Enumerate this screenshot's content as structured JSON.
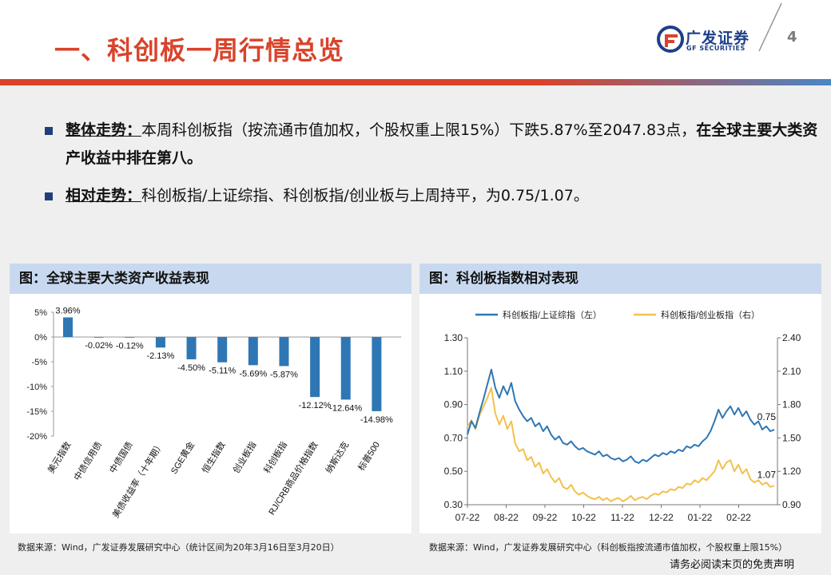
{
  "header": {
    "title": "一、科创板一周行情总览",
    "logo_cn": "广发证券",
    "logo_en": "GF SECURITIES",
    "page_number": "4"
  },
  "bullets": [
    {
      "label": "整体走势：",
      "text": "本周科创板指（按流通市值加权，个股权重上限15%）下跌5.87%至2047.83点，",
      "bold_tail": "在全球主要大类资产收益中排在第八。"
    },
    {
      "label": "相对走势：",
      "text": "科创板指/上证综指、科创板指/创业板与上周持平，为0.75/1.07。"
    }
  ],
  "colors": {
    "accent_red": "#d9432b",
    "bar_blue": "#2f77b4",
    "line_blue": "#2f77b4",
    "line_gold": "#f2c14e",
    "panel_header": "#c8d9ef"
  },
  "left_panel": {
    "header": "图：全球主要大类资产收益表现",
    "source": "数据来源：Wind，广发证券发展研究中心（统计区间为20年3月16日至3月20日）"
  },
  "right_panel": {
    "header": "图：科创板指数相对表现",
    "source": "数据来源：Wind，广发证券发展研究中心（科创板指按流通市值加权，个股权重上限15%）"
  },
  "disclaimer": "请务必阅读末页的免责声明",
  "chart_data": [
    {
      "type": "bar",
      "categories": [
        "美元指数",
        "中债信用债",
        "中债国债",
        "美债收益率（十年期）",
        "SGE黄金",
        "恒生指数",
        "创业板指",
        "科创板指",
        "RJ/CRB商品价格指数",
        "纳斯达克",
        "标普500"
      ],
      "values": [
        3.96,
        -0.02,
        -0.12,
        -2.13,
        -4.5,
        -5.11,
        -5.69,
        -5.87,
        -12.12,
        -12.64,
        -14.98
      ],
      "value_labels": [
        "3.96%",
        "-0.02%",
        "-0.12%",
        "-2.13%",
        "-4.50%",
        "-5.11%",
        "-5.69%",
        "-5.87%",
        "-12.12%",
        "-12.64%",
        "-14.98%"
      ],
      "yticks": [
        "5%",
        "0%",
        "-5%",
        "-10%",
        "-15%",
        "-20%"
      ],
      "ylim": [
        -20,
        5
      ],
      "grid": false,
      "legend": "none"
    },
    {
      "type": "line",
      "x_ticks": [
        "07-22",
        "08-22",
        "09-22",
        "10-22",
        "11-22",
        "12-22",
        "01-22",
        "02-22"
      ],
      "y_left": {
        "ticks": [
          "1.30",
          "1.10",
          "0.90",
          "0.70",
          "0.50",
          "0.30"
        ],
        "lim": [
          0.3,
          1.3
        ]
      },
      "y_right": {
        "ticks": [
          "2.40",
          "2.10",
          "1.80",
          "1.50",
          "1.20",
          "0.90"
        ],
        "lim": [
          0.9,
          2.4
        ]
      },
      "legend": "top",
      "series": [
        {
          "name": "科创板指/上证综指（左）",
          "axis": "left",
          "end_label": "0.75",
          "values": [
            0.72,
            0.8,
            0.76,
            0.85,
            0.93,
            1.02,
            1.11,
            1.0,
            0.94,
            1.01,
            0.96,
            1.03,
            0.92,
            0.87,
            0.83,
            0.8,
            0.82,
            0.77,
            0.79,
            0.74,
            0.77,
            0.72,
            0.69,
            0.71,
            0.67,
            0.66,
            0.68,
            0.65,
            0.63,
            0.64,
            0.62,
            0.61,
            0.6,
            0.62,
            0.59,
            0.6,
            0.58,
            0.57,
            0.58,
            0.56,
            0.57,
            0.59,
            0.56,
            0.55,
            0.57,
            0.56,
            0.58,
            0.6,
            0.59,
            0.61,
            0.6,
            0.62,
            0.61,
            0.63,
            0.62,
            0.65,
            0.64,
            0.66,
            0.65,
            0.68,
            0.7,
            0.74,
            0.8,
            0.87,
            0.82,
            0.86,
            0.89,
            0.84,
            0.88,
            0.83,
            0.86,
            0.81,
            0.78,
            0.8,
            0.75,
            0.77,
            0.74,
            0.75
          ]
        },
        {
          "name": "科创板指/创业板指（右）",
          "axis": "right",
          "end_label": "1.07",
          "values": [
            1.6,
            1.66,
            1.58,
            1.7,
            1.78,
            1.86,
            1.95,
            1.72,
            1.62,
            1.7,
            1.58,
            1.65,
            1.45,
            1.38,
            1.4,
            1.3,
            1.33,
            1.24,
            1.28,
            1.18,
            1.22,
            1.15,
            1.1,
            1.14,
            1.06,
            1.04,
            1.08,
            1.02,
            0.99,
            1.01,
            0.98,
            0.96,
            0.95,
            0.97,
            0.94,
            0.96,
            0.93,
            0.95,
            0.96,
            0.93,
            0.95,
            0.98,
            0.94,
            0.96,
            0.97,
            0.95,
            0.98,
            1.0,
            0.99,
            1.02,
            1.01,
            1.04,
            1.03,
            1.06,
            1.05,
            1.09,
            1.08,
            1.12,
            1.1,
            1.14,
            1.12,
            1.16,
            1.2,
            1.3,
            1.22,
            1.28,
            1.3,
            1.2,
            1.26,
            1.18,
            1.22,
            1.13,
            1.1,
            1.12,
            1.08,
            1.1,
            1.06,
            1.07
          ]
        }
      ]
    }
  ]
}
